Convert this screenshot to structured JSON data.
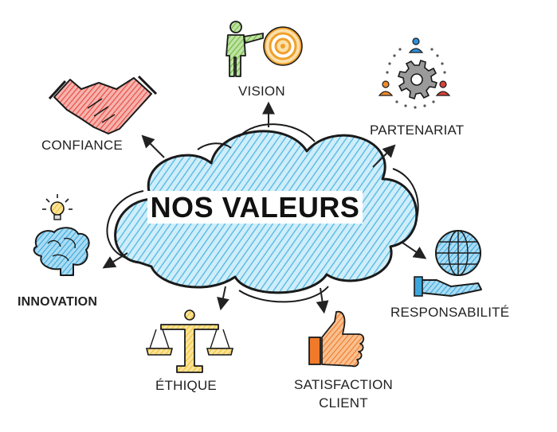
{
  "center": {
    "title": "NOS VALEURS"
  },
  "values": {
    "vision": "VISION",
    "partenariat": "PARTENARIAT",
    "confiance": "CONFIANCE",
    "innovation": "INNOVATION",
    "responsabilite": "RESPONSABILITÉ",
    "ethique": "ÉTHIQUE",
    "satisfaction_line1": "SATISFACTION",
    "satisfaction_line2": "CLIENT"
  },
  "colors": {
    "cloud": "#8fd2ee",
    "cloud_outline": "#1a1a1a",
    "handshake": "#e8473f",
    "vision_person": "#6dba3c",
    "target": "#f0a02c",
    "gear": "#6a6a6a",
    "people_blue": "#2f8fd8",
    "people_orange": "#f08a2c",
    "people_red": "#d9423a",
    "bulb": "#f2c12e",
    "brain": "#3ba7dd",
    "globe": "#3ba7dd",
    "scales": "#f2c12e",
    "thumb": "#f07a2a"
  },
  "icons": [
    "handshake-icon",
    "target-icon",
    "gear-people-icon",
    "lightbulb-icon",
    "brain-icon",
    "globe-hand-icon",
    "scales-icon",
    "thumbs-up-icon"
  ]
}
